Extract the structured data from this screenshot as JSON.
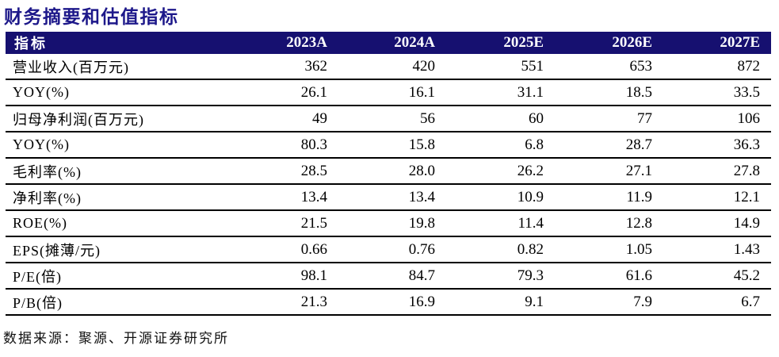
{
  "title": "财务摘要和估值指标",
  "table": {
    "header": {
      "metric_label": "指标",
      "columns": [
        "2023A",
        "2024A",
        "2025E",
        "2026E",
        "2027E"
      ]
    },
    "rows": [
      {
        "label": "营业收入(百万元)",
        "values": [
          "362",
          "420",
          "551",
          "653",
          "872"
        ]
      },
      {
        "label": "YOY(%)",
        "values": [
          "26.1",
          "16.1",
          "31.1",
          "18.5",
          "33.5"
        ]
      },
      {
        "label": "归母净利润(百万元)",
        "values": [
          "49",
          "56",
          "60",
          "77",
          "106"
        ]
      },
      {
        "label": "YOY(%)",
        "values": [
          "80.3",
          "15.8",
          "6.8",
          "28.7",
          "36.3"
        ]
      },
      {
        "label": "毛利率(%)",
        "values": [
          "28.5",
          "28.0",
          "26.2",
          "27.1",
          "27.8"
        ]
      },
      {
        "label": "净利率(%)",
        "values": [
          "13.4",
          "13.4",
          "10.9",
          "11.9",
          "12.1"
        ]
      },
      {
        "label": "ROE(%)",
        "values": [
          "21.5",
          "19.8",
          "11.4",
          "12.8",
          "14.9"
        ]
      },
      {
        "label": "EPS(摊薄/元)",
        "values": [
          "0.66",
          "0.76",
          "0.82",
          "1.05",
          "1.43"
        ]
      },
      {
        "label": "P/E(倍)",
        "values": [
          "98.1",
          "84.7",
          "79.3",
          "61.6",
          "45.2"
        ]
      },
      {
        "label": "P/B(倍)",
        "values": [
          "21.3",
          "16.9",
          "9.1",
          "7.9",
          "6.7"
        ]
      }
    ]
  },
  "footer": {
    "source_text": "数据来源：聚源、开源证券研究所"
  },
  "colors": {
    "header_background": "#161070",
    "header_text": "#ffffff",
    "title_text": "#1d188a",
    "row_rule": "#000000",
    "body_text": "#000000"
  }
}
